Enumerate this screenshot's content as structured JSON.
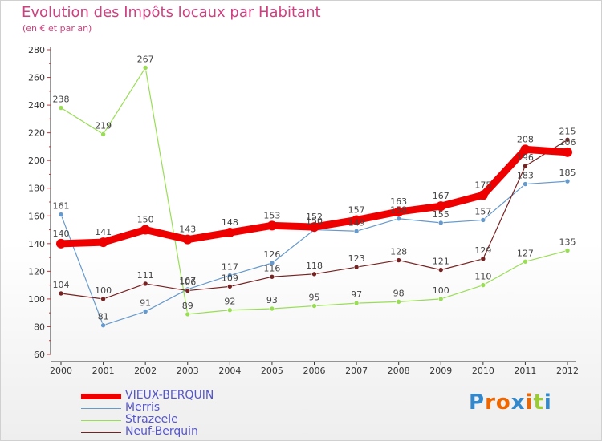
{
  "header": {
    "title": "Evolution des Impôts locaux par Habitant",
    "subtitle": "(en € et par an)"
  },
  "brand": {
    "text": "Proxiti"
  },
  "colors": {
    "title": "#d04080",
    "axis": "#333333",
    "tick": "#cc3333",
    "legend_text": "#5555cc"
  },
  "chart_data": {
    "type": "line",
    "title": "Evolution des Impôts locaux par Habitant",
    "subtitle": "(en € et par an)",
    "xlabel": "",
    "ylabel": "",
    "ylim": [
      60,
      280
    ],
    "yticks": [
      60,
      80,
      100,
      120,
      140,
      160,
      180,
      200,
      220,
      240,
      260,
      280
    ],
    "categories": [
      "2000",
      "2001",
      "2002",
      "2003",
      "2004",
      "2005",
      "2006",
      "2007",
      "2008",
      "2009",
      "2010",
      "2011",
      "2012"
    ],
    "legend_position": "bottom-left",
    "series": [
      {
        "name": "VIEUX-BERQUIN",
        "color": "#ee0000",
        "values": [
          140,
          141,
          150,
          143,
          148,
          153,
          152,
          157,
          163,
          167,
          175,
          208,
          206
        ]
      },
      {
        "name": "Merris",
        "color": "#6699cc",
        "values": [
          161,
          81,
          91,
          107,
          117,
          126,
          150,
          149,
          158,
          155,
          157,
          183,
          185
        ]
      },
      {
        "name": "Strazeele",
        "color": "#99dd55",
        "values": [
          238,
          219,
          267,
          89,
          92,
          93,
          95,
          97,
          98,
          100,
          110,
          127,
          135
        ]
      },
      {
        "name": "Neuf-Berquin",
        "color": "#772222",
        "values": [
          104,
          100,
          111,
          106,
          109,
          116,
          118,
          123,
          128,
          121,
          129,
          196,
          215
        ]
      }
    ]
  }
}
